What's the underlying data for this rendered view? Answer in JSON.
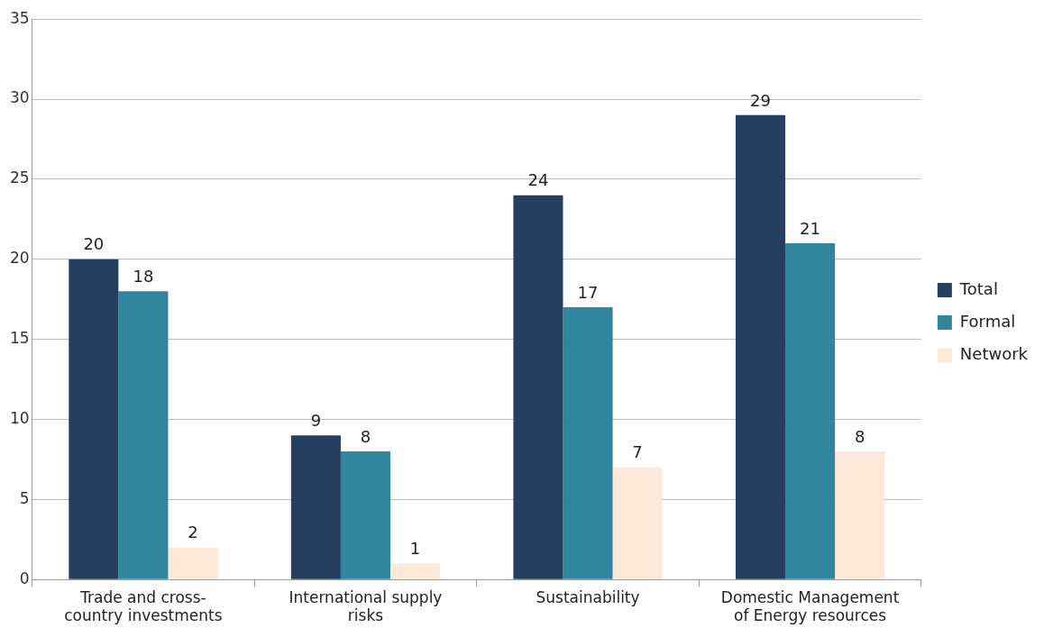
{
  "chart_data": {
    "type": "bar",
    "categories": [
      "Trade and cross-country investments",
      "International supply risks",
      "Sustainability",
      "Domestic Management of Energy resources"
    ],
    "series": [
      {
        "name": "Total",
        "color": "#243f60",
        "values": [
          20,
          9,
          24,
          29
        ]
      },
      {
        "name": "Formal",
        "color": "#31859c",
        "values": [
          18,
          8,
          17,
          21
        ]
      },
      {
        "name": "Network",
        "color": "#fde9d9",
        "values": [
          2,
          1,
          7,
          8
        ]
      }
    ],
    "ylim": [
      0,
      35
    ],
    "yticks": [
      0,
      5,
      10,
      15,
      20,
      25,
      30,
      35
    ],
    "grid": "y",
    "legend": "right",
    "data_labels": true
  }
}
